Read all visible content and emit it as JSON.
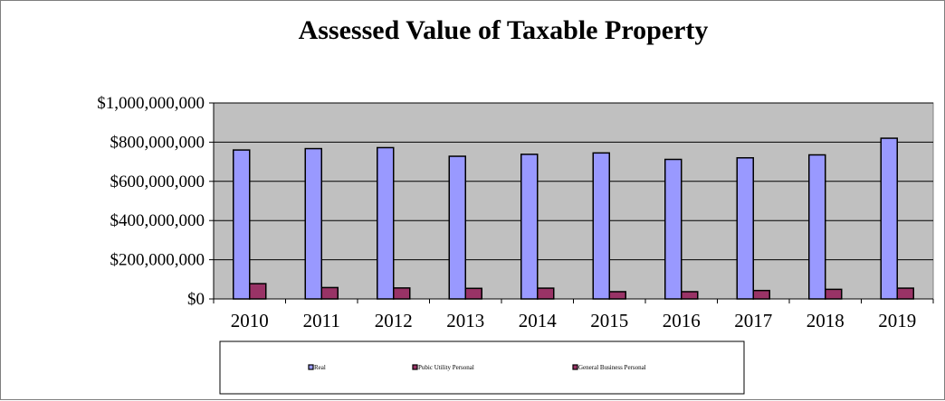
{
  "chart_data": {
    "type": "bar",
    "title": "Assessed Value of Taxable Property",
    "xlabel": "",
    "ylabel": "",
    "categories": [
      "2010",
      "2011",
      "2012",
      "2013",
      "2014",
      "2015",
      "2016",
      "2017",
      "2018",
      "2019"
    ],
    "series": [
      {
        "name": "Real",
        "color": "#9999ff",
        "values": [
          760000000,
          767000000,
          772000000,
          728000000,
          738000000,
          745000000,
          712000000,
          720000000,
          735000000,
          820000000
        ]
      },
      {
        "name": "Pubic Utility Personal",
        "color": "#993366",
        "values": [
          78000000,
          58000000,
          56000000,
          54000000,
          55000000,
          37000000,
          37000000,
          43000000,
          49000000,
          55000000
        ]
      },
      {
        "name": "General Business Personal",
        "color": "#993366",
        "values": [
          0,
          0,
          0,
          0,
          0,
          0,
          0,
          0,
          0,
          0
        ]
      }
    ],
    "yticks": [
      "$0",
      "$200,000,000",
      "$400,000,000",
      "$600,000,000",
      "$800,000,000",
      "$1,000,000,000"
    ],
    "ylim": [
      0,
      1000000000
    ],
    "grid": true,
    "plot_background": "#c0c0c0",
    "legend_position": "bottom"
  }
}
